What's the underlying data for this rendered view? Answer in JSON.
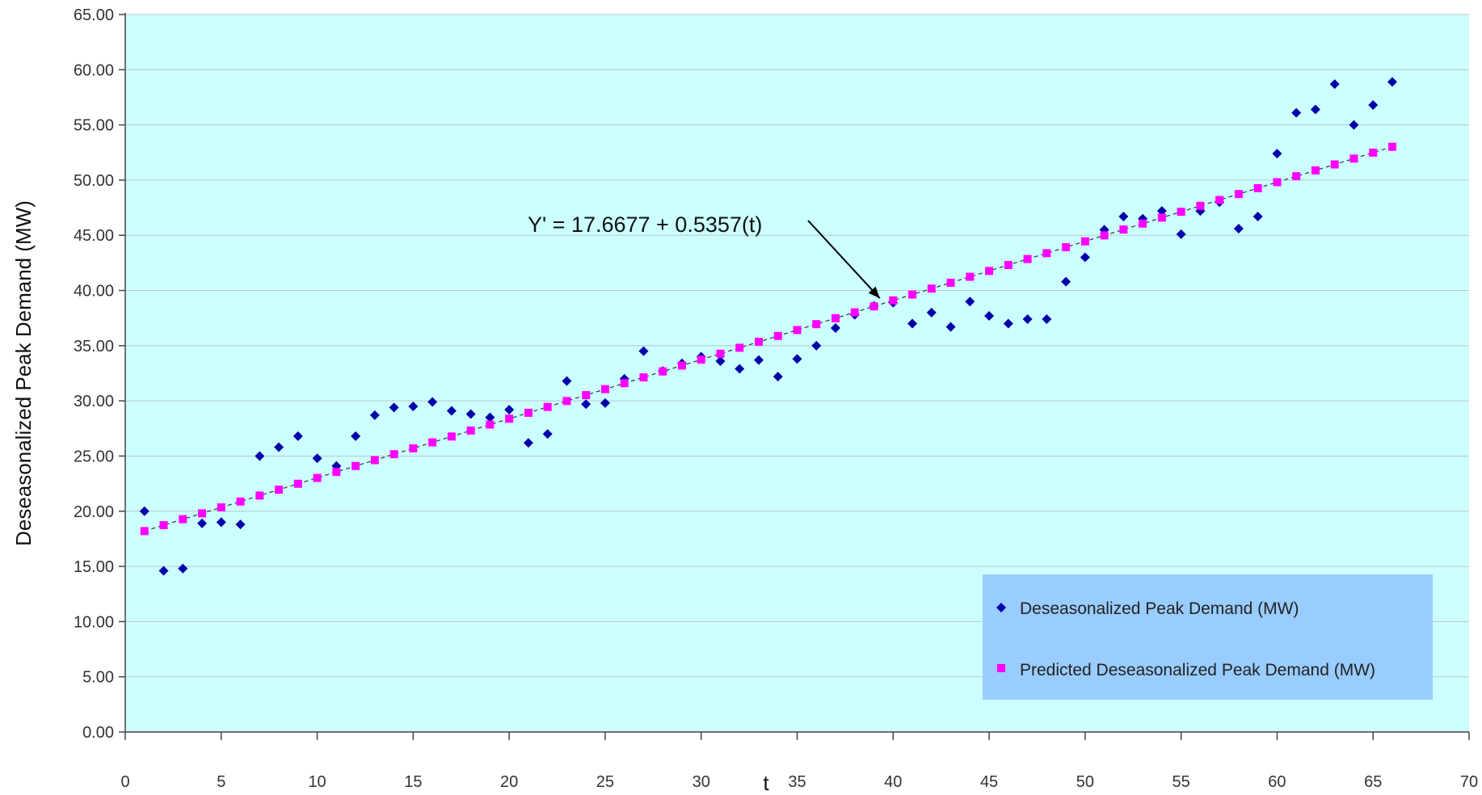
{
  "chart_data": {
    "type": "scatter",
    "xlabel": "t",
    "ylabel": "Deseasonalized Peak Demand (MW)",
    "xlim": [
      0,
      70
    ],
    "ylim": [
      0,
      65
    ],
    "x_ticks": [
      0,
      5,
      10,
      15,
      20,
      25,
      30,
      35,
      40,
      45,
      50,
      55,
      60,
      65,
      70
    ],
    "y_ticks": [
      "0.00",
      "5.00",
      "10.00",
      "15.00",
      "20.00",
      "25.00",
      "30.00",
      "35.00",
      "40.00",
      "45.00",
      "50.00",
      "55.00",
      "60.00",
      "65.00"
    ],
    "grid": "horizontal",
    "legend_position": "bottom-right",
    "plot_background": "#ccffff",
    "legend_background": "#99ccff",
    "annotation": {
      "text": "Y' = 17.6677 + 0.5357(t)",
      "points_to_t": 39.3
    },
    "trend": {
      "intercept": 17.6677,
      "slope": 0.5357,
      "color": "#333333",
      "style": "dashed"
    },
    "series": [
      {
        "name": "Deseasonalized Peak Demand (MW)",
        "marker": "diamond",
        "color": "#0000aa",
        "x": [
          1,
          2,
          3,
          4,
          5,
          6,
          7,
          8,
          9,
          10,
          11,
          12,
          13,
          14,
          15,
          16,
          17,
          18,
          19,
          20,
          21,
          22,
          23,
          24,
          25,
          26,
          27,
          28,
          29,
          30,
          31,
          32,
          33,
          34,
          35,
          36,
          37,
          38,
          39,
          40,
          41,
          42,
          43,
          44,
          45,
          46,
          47,
          48,
          49,
          50,
          51,
          52,
          53,
          54,
          55,
          56,
          57,
          58,
          59,
          60,
          61,
          62,
          63,
          64,
          65,
          66
        ],
        "y": [
          20.0,
          14.6,
          14.8,
          18.9,
          19.0,
          18.8,
          25.0,
          25.8,
          26.8,
          24.8,
          24.1,
          26.8,
          28.7,
          29.4,
          29.5,
          29.9,
          29.1,
          28.8,
          28.5,
          29.2,
          26.2,
          27.0,
          31.8,
          29.7,
          29.8,
          32.0,
          34.5,
          32.7,
          33.4,
          34.0,
          33.6,
          32.9,
          33.7,
          32.2,
          33.8,
          35.0,
          36.6,
          37.8,
          38.6,
          38.9,
          37.0,
          38.0,
          36.7,
          39.0,
          37.7,
          37.0,
          37.4,
          37.4,
          40.8,
          43.0,
          45.5,
          46.7,
          46.5,
          47.2,
          45.1,
          47.2,
          48.0,
          45.6,
          46.7,
          52.4,
          56.1,
          56.4,
          58.7,
          55.0,
          56.8,
          58.9
        ]
      },
      {
        "name": "Predicted Deseasonalized Peak Demand (MW)",
        "marker": "square",
        "color": "#ff00ff",
        "x": [
          1,
          2,
          3,
          4,
          5,
          6,
          7,
          8,
          9,
          10,
          11,
          12,
          13,
          14,
          15,
          16,
          17,
          18,
          19,
          20,
          21,
          22,
          23,
          24,
          25,
          26,
          27,
          28,
          29,
          30,
          31,
          32,
          33,
          34,
          35,
          36,
          37,
          38,
          39,
          40,
          41,
          42,
          43,
          44,
          45,
          46,
          47,
          48,
          49,
          50,
          51,
          52,
          53,
          54,
          55,
          56,
          57,
          58,
          59,
          60,
          61,
          62,
          63,
          64,
          65,
          66
        ],
        "y": [
          18.2,
          18.74,
          19.28,
          19.81,
          20.35,
          20.88,
          21.42,
          21.95,
          22.49,
          23.02,
          23.56,
          24.1,
          24.63,
          25.17,
          25.7,
          26.24,
          26.77,
          27.31,
          27.85,
          28.38,
          28.92,
          29.45,
          29.99,
          30.52,
          31.06,
          31.6,
          32.13,
          32.67,
          33.2,
          33.74,
          34.27,
          34.81,
          35.35,
          35.88,
          36.42,
          36.95,
          37.49,
          38.02,
          38.56,
          39.1,
          39.63,
          40.17,
          40.7,
          41.24,
          41.77,
          42.31,
          42.85,
          43.38,
          43.92,
          44.45,
          44.99,
          45.52,
          46.06,
          46.6,
          47.13,
          47.67,
          48.2,
          48.74,
          49.27,
          49.81,
          50.35,
          50.88,
          51.42,
          51.95,
          52.49,
          53.02
        ]
      }
    ]
  }
}
